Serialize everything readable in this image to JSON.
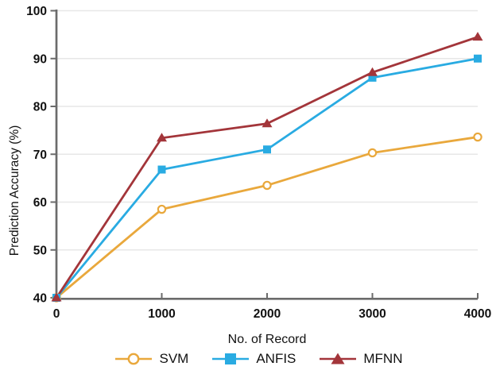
{
  "chart_data": {
    "type": "line",
    "title": "",
    "xlabel": "No. of Record",
    "ylabel": "Prediction Accuracy (%)",
    "xlim": [
      0,
      4000
    ],
    "ylim": [
      40,
      100
    ],
    "xticks": [
      0,
      1000,
      2000,
      3000,
      4000
    ],
    "yticks": [
      40,
      50,
      60,
      70,
      80,
      90,
      100
    ],
    "grid": "horizontal",
    "legend_position": "bottom",
    "x": [
      0,
      1000,
      2000,
      3000,
      4000
    ],
    "series": [
      {
        "name": "SVM",
        "marker": "circle-open",
        "color": "#E9A83C",
        "values": [
          40,
          58.5,
          63.5,
          70.3,
          73.6
        ]
      },
      {
        "name": "ANFIS",
        "marker": "square",
        "color": "#29ABE2",
        "values": [
          40,
          66.8,
          71.0,
          86.0,
          90.0
        ]
      },
      {
        "name": "MFNN",
        "marker": "triangle",
        "color": "#A3353A",
        "values": [
          40,
          73.4,
          76.4,
          87.1,
          94.5
        ]
      }
    ]
  },
  "colors": {
    "axis": "#6B6B6B",
    "grid": "#E7E7E7",
    "text": "#111111",
    "background": "#FFFFFF"
  }
}
